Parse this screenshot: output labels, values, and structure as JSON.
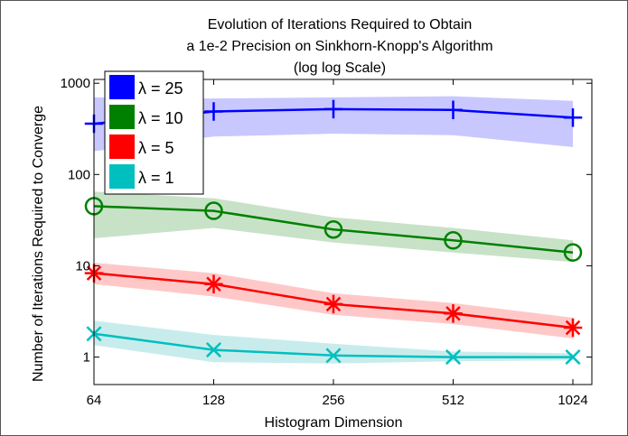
{
  "chart_data": {
    "type": "line",
    "title": [
      "Evolution of Iterations Required to Obtain",
      "a 1e-2 Precision on Sinkhorn-Knopp's Algorithm",
      "(log log Scale)"
    ],
    "xlabel": "Histogram Dimension",
    "ylabel": "Number of Iterations Required to Converge",
    "xscale": "log2",
    "yscale": "log10",
    "x": [
      64,
      128,
      256,
      512,
      1024
    ],
    "xticks": [
      "64",
      "128",
      "256",
      "512",
      "1024"
    ],
    "yticks": [
      "1",
      "10",
      "100",
      "1000"
    ],
    "xlim": [
      64,
      1024
    ],
    "ylim": [
      0.5,
      1100
    ],
    "grid": false,
    "legend_position": "top-left",
    "series": [
      {
        "name": "λ = 25",
        "color": "#0000ff",
        "band_color": "#c8c8ff",
        "marker": "plus",
        "values": [
          360,
          490,
          520,
          510,
          420
        ],
        "band_upper": [
          700,
          680,
          700,
          720,
          640
        ],
        "band_lower": [
          180,
          260,
          280,
          270,
          200
        ]
      },
      {
        "name": "λ = 10",
        "color": "#008000",
        "band_color": "#c8e2c8",
        "marker": "circle",
        "values": [
          45,
          40,
          25,
          19,
          14
        ],
        "band_upper": [
          65,
          55,
          34,
          26,
          19
        ],
        "band_lower": [
          20,
          26,
          18,
          14,
          11
        ]
      },
      {
        "name": "λ = 5",
        "color": "#ff0000",
        "band_color": "#ffc8c8",
        "marker": "asterisk",
        "values": [
          8.3,
          6.3,
          3.8,
          3.0,
          2.1
        ],
        "band_upper": [
          10.8,
          8.3,
          5.0,
          3.9,
          2.7
        ],
        "band_lower": [
          6.3,
          4.6,
          2.9,
          2.3,
          1.6
        ]
      },
      {
        "name": "λ = 1",
        "color": "#00bfbf",
        "band_color": "#c8ecec",
        "marker": "x",
        "values": [
          1.8,
          1.2,
          1.04,
          1.0,
          1.0
        ],
        "band_upper": [
          2.5,
          1.75,
          1.4,
          1.15,
          1.1
        ],
        "band_lower": [
          1.35,
          0.88,
          0.85,
          0.9,
          0.92
        ]
      }
    ]
  }
}
